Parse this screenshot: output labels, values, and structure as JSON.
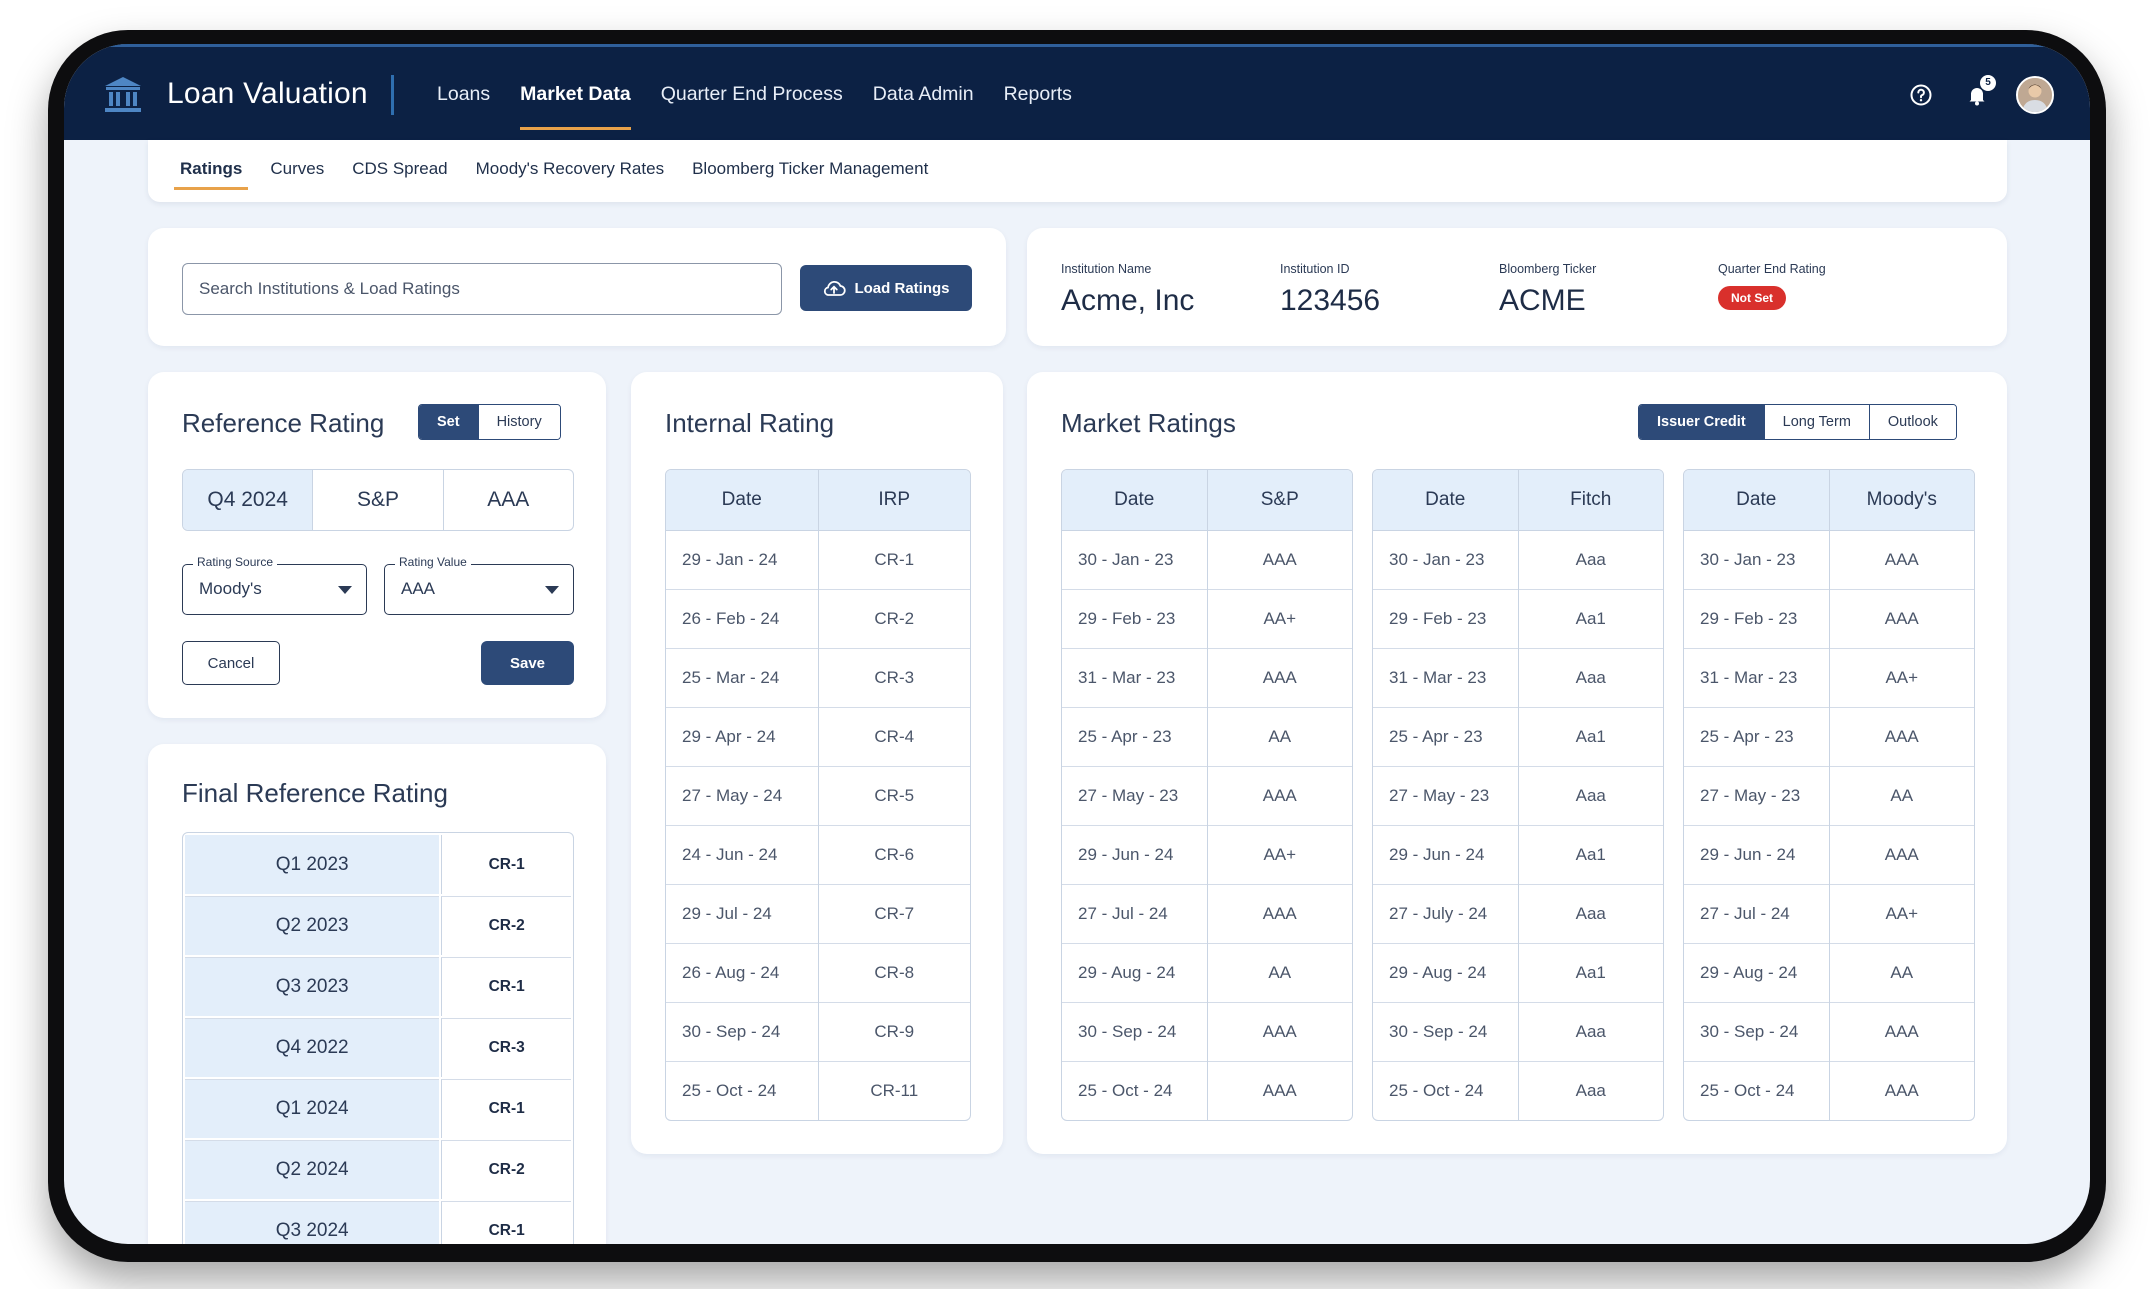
{
  "app": {
    "title": "Loan Valuation",
    "notification_count": "5"
  },
  "nav": {
    "items": [
      {
        "label": "Loans",
        "active": false
      },
      {
        "label": "Market Data",
        "active": true
      },
      {
        "label": "Quarter End Process",
        "active": false
      },
      {
        "label": "Data Admin",
        "active": false
      },
      {
        "label": "Reports",
        "active": false
      }
    ]
  },
  "subnav": {
    "tabs": [
      {
        "label": "Ratings",
        "active": true
      },
      {
        "label": "Curves",
        "active": false
      },
      {
        "label": "CDS Spread",
        "active": false
      },
      {
        "label": "Moody's Recovery Rates",
        "active": false
      },
      {
        "label": "Bloomberg Ticker Management",
        "active": false
      }
    ]
  },
  "search": {
    "placeholder": "Search Institutions & Load Ratings",
    "button_label": "Load Ratings"
  },
  "institution": {
    "name_label": "Institution Name",
    "name": "Acme, Inc",
    "id_label": "Institution ID",
    "id": "123456",
    "ticker_label": "Bloomberg Ticker",
    "ticker": "ACME",
    "qe_label": "Quarter End Rating",
    "qe_status": "Not Set"
  },
  "reference_rating": {
    "title": "Reference Rating",
    "toggle": [
      "Set",
      "History"
    ],
    "summary": {
      "quarter": "Q4 2024",
      "source": "S&P",
      "value": "AAA"
    },
    "rating_source": {
      "label": "Rating Source",
      "value": "Moody's"
    },
    "rating_value": {
      "label": "Rating Value",
      "value": "AAA"
    },
    "cancel_label": "Cancel",
    "save_label": "Save"
  },
  "final_reference": {
    "title": "Final Reference Rating",
    "rows": [
      {
        "quarter": "Q1 2023",
        "rating": "CR-1"
      },
      {
        "quarter": "Q2 2023",
        "rating": "CR-2"
      },
      {
        "quarter": "Q3 2023",
        "rating": "CR-1"
      },
      {
        "quarter": "Q4 2022",
        "rating": "CR-3"
      },
      {
        "quarter": "Q1 2024",
        "rating": "CR-1"
      },
      {
        "quarter": "Q2 2024",
        "rating": "CR-2"
      },
      {
        "quarter": "Q3 2024",
        "rating": "CR-1"
      }
    ]
  },
  "internal_rating": {
    "title": "Internal Rating",
    "headers": [
      "Date",
      "IRP"
    ],
    "rows": [
      [
        "29 - Jan - 24",
        "CR-1"
      ],
      [
        "26 - Feb - 24",
        "CR-2"
      ],
      [
        "25 - Mar - 24",
        "CR-3"
      ],
      [
        "29 - Apr - 24",
        "CR-4"
      ],
      [
        "27 - May - 24",
        "CR-5"
      ],
      [
        "24 - Jun - 24",
        "CR-6"
      ],
      [
        "29 - Jul - 24",
        "CR-7"
      ],
      [
        "26 - Aug - 24",
        "CR-8"
      ],
      [
        "30 - Sep - 24",
        "CR-9"
      ],
      [
        "25 - Oct - 24",
        "CR-11"
      ]
    ]
  },
  "market_ratings": {
    "title": "Market Ratings",
    "toggle": [
      "Issuer Credit",
      "Long Term",
      "Outlook"
    ],
    "tables": [
      {
        "headers": [
          "Date",
          "S&P"
        ],
        "rows": [
          [
            "30 - Jan - 23",
            "AAA"
          ],
          [
            "29 - Feb - 23",
            "AA+"
          ],
          [
            "31 - Mar - 23",
            "AAA"
          ],
          [
            "25 - Apr - 23",
            "AA"
          ],
          [
            "27 - May - 23",
            "AAA"
          ],
          [
            "29 - Jun - 24",
            "AA+"
          ],
          [
            "27 - Jul - 24",
            "AAA"
          ],
          [
            "29 - Aug - 24",
            "AA"
          ],
          [
            "30 - Sep - 24",
            "AAA"
          ],
          [
            "25 - Oct - 24",
            "AAA"
          ]
        ]
      },
      {
        "headers": [
          "Date",
          "Fitch"
        ],
        "rows": [
          [
            "30 - Jan - 23",
            "Aaa"
          ],
          [
            "29 - Feb - 23",
            "Aa1"
          ],
          [
            "31 - Mar - 23",
            "Aaa"
          ],
          [
            "25 - Apr - 23",
            "Aa1"
          ],
          [
            "27 - May - 23",
            "Aaa"
          ],
          [
            "29 - Jun - 24",
            "Aa1"
          ],
          [
            "27 - July - 24",
            "Aaa"
          ],
          [
            "29 - Aug - 24",
            "Aa1"
          ],
          [
            "30 - Sep - 24",
            "Aaa"
          ],
          [
            "25 - Oct - 24",
            "Aaa"
          ]
        ]
      },
      {
        "headers": [
          "Date",
          "Moody's"
        ],
        "rows": [
          [
            "30 - Jan - 23",
            "AAA"
          ],
          [
            "29 - Feb - 23",
            "AAA"
          ],
          [
            "31 - Mar - 23",
            "AA+"
          ],
          [
            "25 - Apr - 23",
            "AAA"
          ],
          [
            "27 - May - 23",
            "AA"
          ],
          [
            "29 - Jun - 24",
            "AAA"
          ],
          [
            "27 - Jul - 24",
            "AA+"
          ],
          [
            "29 - Aug - 24",
            "AA"
          ],
          [
            "30 - Sep - 24",
            "AAA"
          ],
          [
            "25 - Oct - 24",
            "AAA"
          ]
        ]
      }
    ]
  },
  "icons": {
    "logo": "bank-icon",
    "help": "help-icon",
    "notifications": "bell-icon",
    "upload": "cloud-upload-icon"
  },
  "colors": {
    "nav_bg": "#0c2144",
    "accent": "#e8a24a",
    "primary": "#2d4a78",
    "danger": "#d9302c",
    "header_cell": "#e3eefa"
  }
}
